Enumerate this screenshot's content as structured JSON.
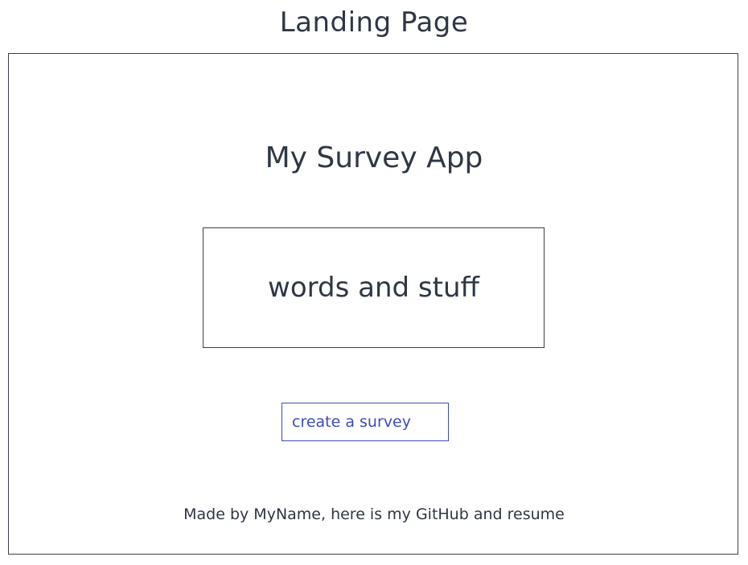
{
  "page": {
    "heading": "Landing Page"
  },
  "app": {
    "title": "My Survey App",
    "hero_text": "words and stuff",
    "cta_label": "create a survey",
    "footer_text": "Made by MyName, here is my GitHub and resume"
  },
  "colors": {
    "ink": "#2f3645",
    "accent": "#3b4cb8",
    "background": "#ffffff"
  }
}
